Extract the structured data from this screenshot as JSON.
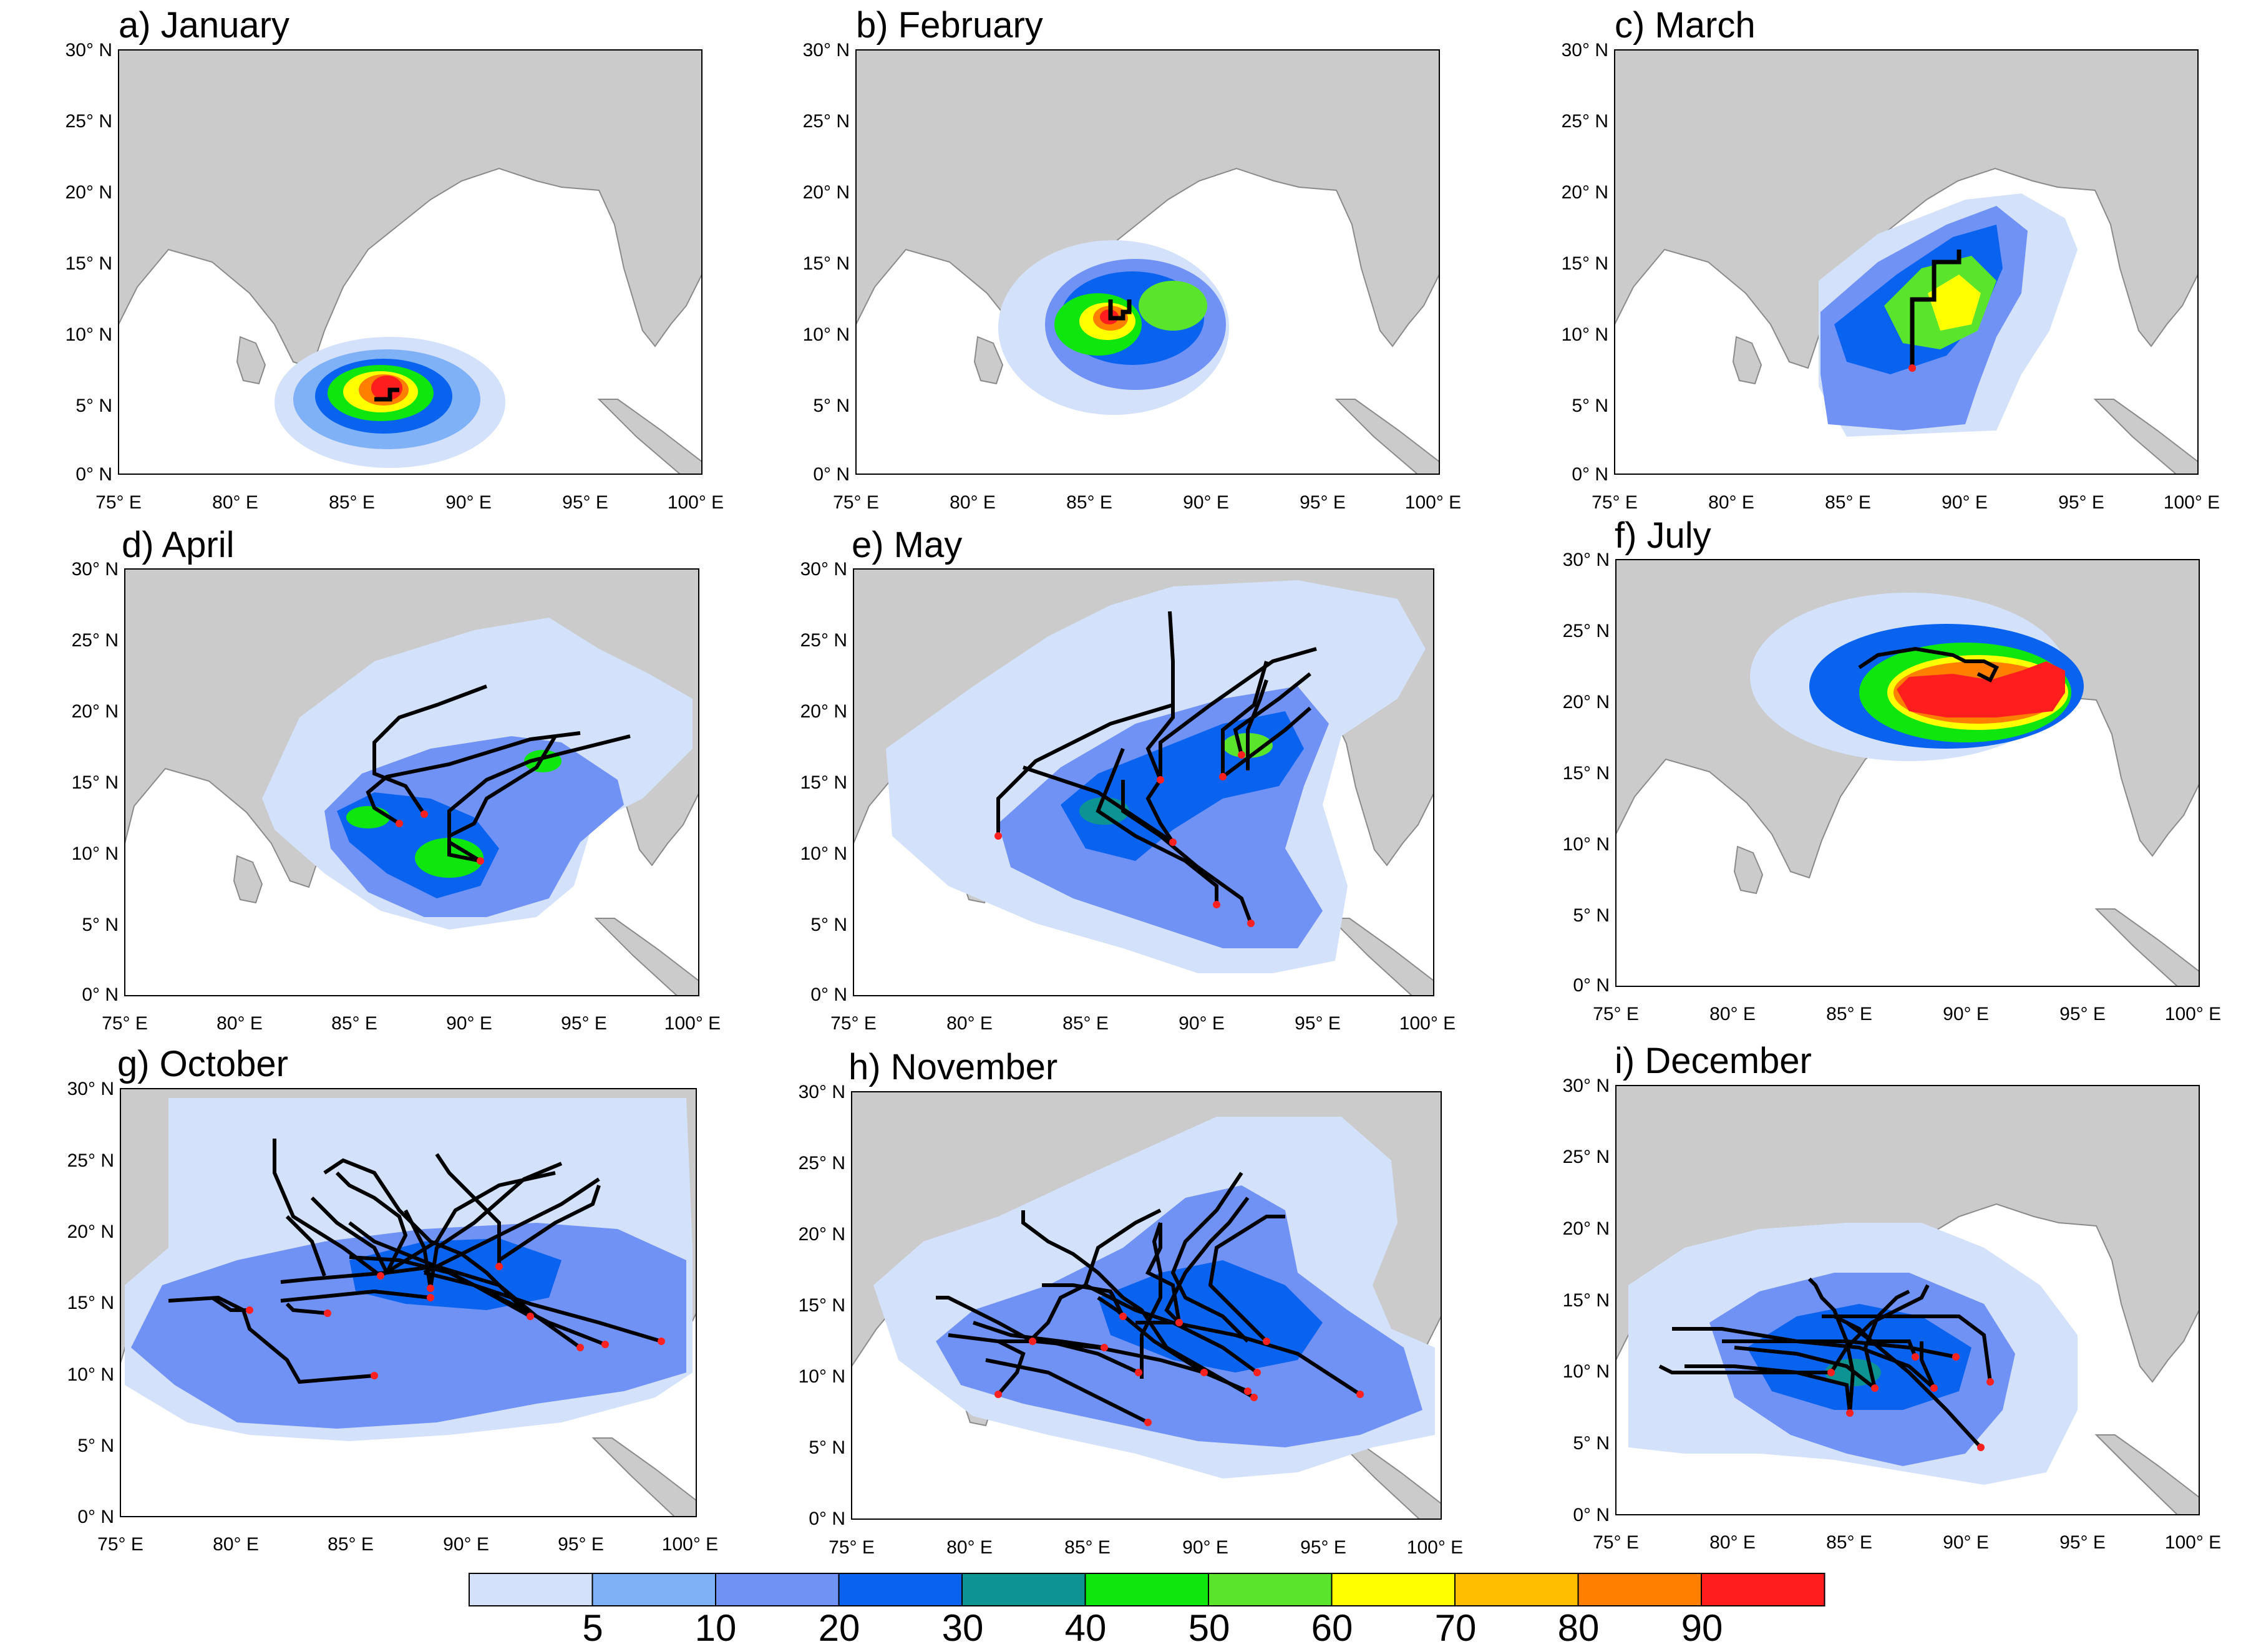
{
  "figure": {
    "panels": [
      {
        "id": "a",
        "label": "a) January"
      },
      {
        "id": "b",
        "label": "b) February"
      },
      {
        "id": "c",
        "label": "c) March"
      },
      {
        "id": "d",
        "label": "d) April"
      },
      {
        "id": "e",
        "label": "e) May"
      },
      {
        "id": "f",
        "label": "f) July"
      },
      {
        "id": "g",
        "label": "g) October"
      },
      {
        "id": "h",
        "label": "h) November"
      },
      {
        "id": "i",
        "label": "i) December"
      }
    ],
    "lat_ticks": [
      "0° N",
      "5° N",
      "10° N",
      "15° N",
      "20° N",
      "25° N",
      "30° N"
    ],
    "lon_ticks": [
      "75° E",
      "80° E",
      "85° E",
      "90° E",
      "95° E",
      "100° E"
    ],
    "lat_range": [
      0,
      30
    ],
    "lon_range": [
      75,
      100
    ],
    "colorbar": {
      "labels": [
        "5",
        "10",
        "20",
        "30",
        "40",
        "50",
        "60",
        "70",
        "80",
        "90"
      ],
      "colors": [
        "#d3e1fb",
        "#7fb1f6",
        "#7192f5",
        "#0a63ef",
        "#0e9393",
        "#0ee60e",
        "#5ae52c",
        "#ffff00",
        "#ffbf00",
        "#ff7f00",
        "#ff1e1e"
      ]
    },
    "colors": {
      "land": "#cbcbcb",
      "track": "#000000",
      "genesis": "#ff2020"
    }
  }
}
